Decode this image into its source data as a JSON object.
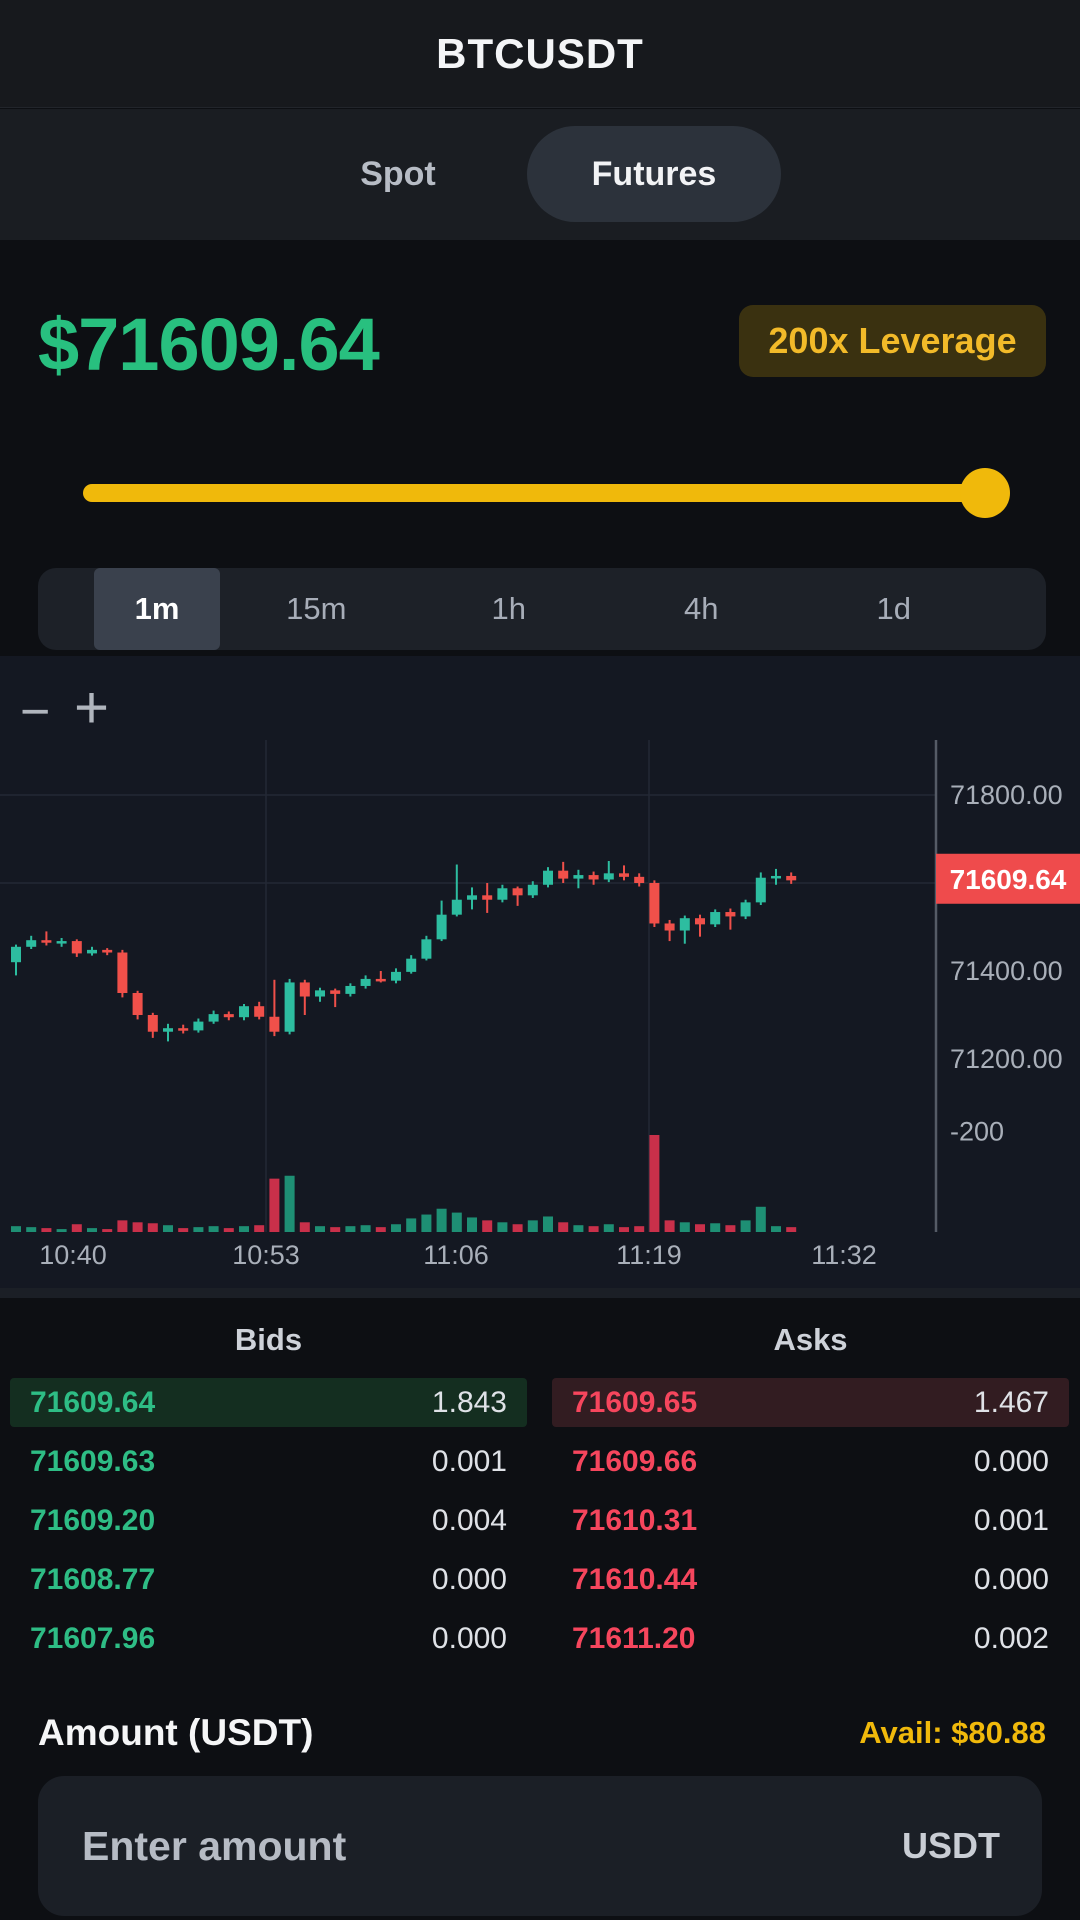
{
  "header": {
    "title": "BTCUSDT"
  },
  "market_tabs": {
    "spot_label": "Spot",
    "futures_label": "Futures",
    "active": "Futures"
  },
  "price_panel": {
    "price": "$71609.64",
    "leverage_badge": "200x Leverage",
    "leverage_slider_percent": 97
  },
  "timeframe_tabs": {
    "items": [
      "1m",
      "15m",
      "1h",
      "4h",
      "1d"
    ],
    "active": "1m"
  },
  "chart_controls": {
    "zoom_out": "−",
    "zoom_in": "+"
  },
  "chart_data": {
    "type": "candlestick",
    "symbol": "BTCUSDT",
    "interval": "1m",
    "price_axis": {
      "labels": [
        {
          "text": "71800.00",
          "price": 71800
        },
        {
          "text": "71400.00",
          "price": 71400
        },
        {
          "text": "71200.00",
          "price": 71200
        },
        {
          "text": "-200",
          "price": 71035
        }
      ],
      "current_price": 71609.64,
      "current_price_tag": "71609.64"
    },
    "time_axis": {
      "labels": [
        "10:40",
        "10:53",
        "11:06",
        "11:19",
        "11:32"
      ]
    },
    "h_gridline_prices": [
      71800,
      71600
    ],
    "colors": {
      "up": "#2dbda0",
      "down": "#f0504a",
      "vol_up": "#1e8f74",
      "vol_down": "#c9304a",
      "tag_bg": "#ef4b4c",
      "axis_text": "#a9afb9",
      "grid": "#232834",
      "axis_line": "#555b66"
    },
    "candles": [
      [
        71420,
        71460,
        71390,
        71455,
        6
      ],
      [
        71455,
        71480,
        71450,
        71470,
        5
      ],
      [
        71470,
        71490,
        71458,
        71465,
        4
      ],
      [
        71465,
        71475,
        71455,
        71468,
        3
      ],
      [
        71468,
        71472,
        71432,
        71440,
        8
      ],
      [
        71440,
        71455,
        71435,
        71448,
        4
      ],
      [
        71448,
        71452,
        71436,
        71442,
        3
      ],
      [
        71442,
        71448,
        71340,
        71350,
        12
      ],
      [
        71350,
        71355,
        71290,
        71300,
        10
      ],
      [
        71300,
        71305,
        71248,
        71262,
        9
      ],
      [
        71262,
        71280,
        71240,
        71270,
        7
      ],
      [
        71270,
        71278,
        71258,
        71265,
        4
      ],
      [
        71265,
        71292,
        71260,
        71285,
        5
      ],
      [
        71285,
        71310,
        71280,
        71302,
        6
      ],
      [
        71302,
        71308,
        71288,
        71295,
        4
      ],
      [
        71295,
        71325,
        71288,
        71320,
        6
      ],
      [
        71320,
        71330,
        71290,
        71296,
        7
      ],
      [
        71296,
        71380,
        71252,
        71262,
        55
      ],
      [
        71262,
        71382,
        71256,
        71374,
        58
      ],
      [
        71374,
        71380,
        71300,
        71342,
        10
      ],
      [
        71342,
        71362,
        71330,
        71356,
        6
      ],
      [
        71356,
        71360,
        71318,
        71348,
        5
      ],
      [
        71348,
        71372,
        71342,
        71366,
        6
      ],
      [
        71366,
        71390,
        71360,
        71382,
        7
      ],
      [
        71382,
        71400,
        71374,
        71378,
        5
      ],
      [
        71378,
        71406,
        71372,
        71398,
        8
      ],
      [
        71398,
        71436,
        71394,
        71428,
        14
      ],
      [
        71428,
        71480,
        71424,
        71472,
        18
      ],
      [
        71472,
        71560,
        71468,
        71528,
        24
      ],
      [
        71528,
        71642,
        71524,
        71562,
        20
      ],
      [
        71562,
        71590,
        71540,
        71572,
        15
      ],
      [
        71572,
        71600,
        71532,
        71562,
        12
      ],
      [
        71562,
        71596,
        71556,
        71588,
        10
      ],
      [
        71588,
        71592,
        71548,
        71572,
        8
      ],
      [
        71572,
        71604,
        71566,
        71596,
        12
      ],
      [
        71596,
        71636,
        71590,
        71628,
        16
      ],
      [
        71628,
        71648,
        71600,
        71610,
        10
      ],
      [
        71610,
        71630,
        71588,
        71618,
        7
      ],
      [
        71618,
        71626,
        71596,
        71608,
        6
      ],
      [
        71608,
        71650,
        71602,
        71622,
        8
      ],
      [
        71622,
        71640,
        71606,
        71614,
        5
      ],
      [
        71614,
        71622,
        71592,
        71600,
        6
      ],
      [
        71600,
        71606,
        71500,
        71508,
        100
      ],
      [
        71508,
        71516,
        71468,
        71492,
        12
      ],
      [
        71492,
        71526,
        71462,
        71520,
        10
      ],
      [
        71520,
        71528,
        71478,
        71506,
        8
      ],
      [
        71506,
        71540,
        71500,
        71534,
        9
      ],
      [
        71534,
        71542,
        71494,
        71524,
        7
      ],
      [
        71524,
        71562,
        71518,
        71556,
        12
      ],
      [
        71556,
        71624,
        71550,
        71612,
        26
      ],
      [
        71612,
        71632,
        71596,
        71616,
        6
      ],
      [
        71616,
        71624,
        71598,
        71606,
        5
      ]
    ]
  },
  "order_book": {
    "bids_header": "Bids",
    "asks_header": "Asks",
    "bids": [
      {
        "price": "71609.64",
        "qty": "1.843"
      },
      {
        "price": "71609.63",
        "qty": "0.001"
      },
      {
        "price": "71609.20",
        "qty": "0.004"
      },
      {
        "price": "71608.77",
        "qty": "0.000"
      },
      {
        "price": "71607.96",
        "qty": "0.000"
      }
    ],
    "asks": [
      {
        "price": "71609.65",
        "qty": "1.467"
      },
      {
        "price": "71609.66",
        "qty": "0.000"
      },
      {
        "price": "71610.31",
        "qty": "0.001"
      },
      {
        "price": "71610.44",
        "qty": "0.000"
      },
      {
        "price": "71611.20",
        "qty": "0.002"
      }
    ]
  },
  "amount_section": {
    "label": "Amount (USDT)",
    "available": "Avail: $80.88",
    "input_placeholder": "Enter amount",
    "unit": "USDT"
  },
  "colors": {
    "accent_green": "#28c07f",
    "accent_red": "#f6465d",
    "accent_yellow": "#f0b90b"
  }
}
